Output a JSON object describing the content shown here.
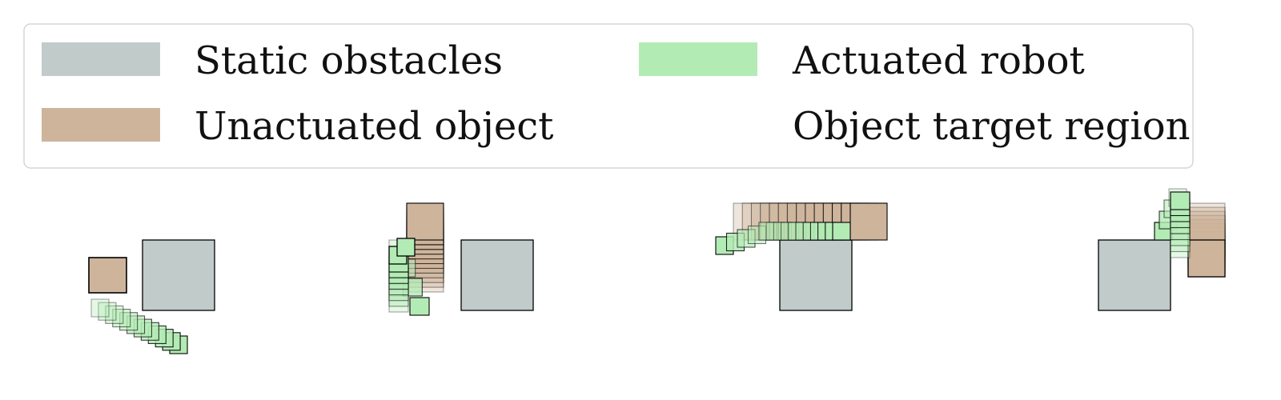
{
  "legend": {
    "items": [
      {
        "key": "static",
        "label": "Static obstacles",
        "color": "#c0cbca"
      },
      {
        "key": "object",
        "label": "Unactuated object",
        "color": "#cdb49b"
      },
      {
        "key": "robot",
        "label": "Actuated robot",
        "color": "#b3ebb5"
      },
      {
        "key": "target",
        "label": "Object target region",
        "color": "none"
      }
    ]
  },
  "colors": {
    "obstacle": "#c0cbca",
    "object": "#cdb49b",
    "robot": "#b3ebb5",
    "stroke": "#000000",
    "legend_border": "#d5d5d5"
  }
}
